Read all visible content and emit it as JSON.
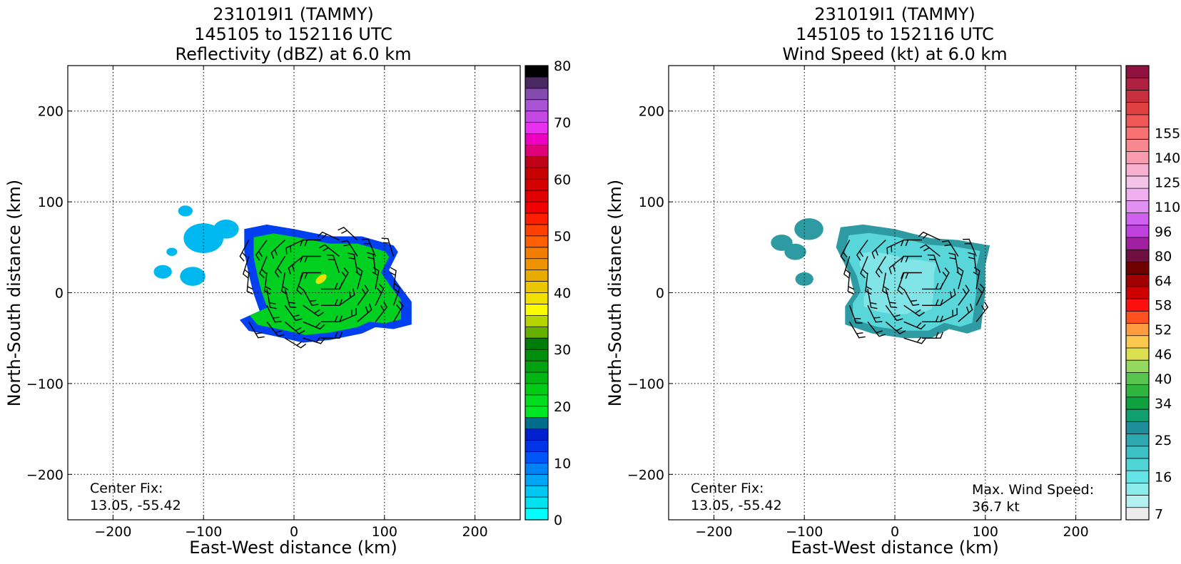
{
  "chart_data": [
    {
      "type": "heatmap",
      "title": [
        "231019I1 (TAMMY)",
        "145105 to 152116 UTC",
        "Reflectivity (dBZ) at 6.0 km"
      ],
      "xlabel": "East-West distance (km)",
      "ylabel": "North-South distance (km)",
      "xlim": [
        -250,
        250
      ],
      "ylim": [
        -250,
        250
      ],
      "xticks": [
        -200,
        -100,
        0,
        100,
        200
      ],
      "yticks": [
        -200,
        -100,
        0,
        100,
        200
      ],
      "xtick_labels": [
        "−200",
        "−100",
        "0",
        "100",
        "200"
      ],
      "ytick_labels": [
        "−200",
        "−100",
        "0",
        "100",
        "200"
      ],
      "grid": true,
      "annotation": {
        "label": "Center Fix:",
        "value": "13.05, -55.42"
      },
      "colorbar": {
        "range": [
          0,
          80
        ],
        "tick_values": [
          0,
          10,
          20,
          30,
          40,
          50,
          60,
          70,
          80
        ],
        "tick_labels": [
          "0",
          "10",
          "20",
          "30",
          "40",
          "50",
          "60",
          "70",
          "80"
        ],
        "colors": [
          "#00ffff",
          "#00e2f0",
          "#00c6f2",
          "#00a4f5",
          "#0082f7",
          "#0055f8",
          "#0034e6",
          "#0020d0",
          "#006e8a",
          "#00e624",
          "#00dc1e",
          "#00cc16",
          "#00b612",
          "#00a20f",
          "#008f0c",
          "#007c08",
          "#68b000",
          "#b6d400",
          "#fcfc00",
          "#f2e000",
          "#ecc600",
          "#e8ac00",
          "#ef9400",
          "#f47c00",
          "#fc6000",
          "#ff4000",
          "#ff1f00",
          "#f00000",
          "#e00000",
          "#d40000",
          "#c90000",
          "#c00018",
          "#e0007a",
          "#ee00c0",
          "#e830ee",
          "#c648e4",
          "#a854d4",
          "#844aae",
          "#4a2a60",
          "#000000"
        ]
      },
      "data_region": {
        "main_body": [
          [
            -55,
            70
          ],
          [
            -30,
            75
          ],
          [
            0,
            70
          ],
          [
            40,
            62
          ],
          [
            75,
            62
          ],
          [
            110,
            52
          ],
          [
            115,
            45
          ],
          [
            105,
            25
          ],
          [
            115,
            10
          ],
          [
            130,
            -10
          ],
          [
            130,
            -35
          ],
          [
            110,
            -40
          ],
          [
            90,
            -38
          ],
          [
            75,
            -45
          ],
          [
            40,
            -52
          ],
          [
            10,
            -55
          ],
          [
            -20,
            -48
          ],
          [
            -50,
            -42
          ],
          [
            -60,
            -30
          ],
          [
            -38,
            -20
          ],
          [
            -45,
            0
          ],
          [
            -50,
            20
          ],
          [
            -55,
            45
          ]
        ],
        "small_patches": [
          [
            -145,
            23,
            10
          ],
          [
            -112,
            18,
            14
          ],
          [
            -100,
            60,
            22
          ],
          [
            -75,
            70,
            14
          ],
          [
            -135,
            45,
            6
          ],
          [
            -120,
            90,
            8
          ]
        ],
        "colors": {
          "edge": "#0040f0",
          "body": "#00d020",
          "core": "#e8e000",
          "outer": "#00b8f0"
        },
        "core_location": [
          30,
          15
        ]
      },
      "wind_barbs": "present"
    },
    {
      "type": "heatmap",
      "title": [
        "231019I1 (TAMMY)",
        "145105 to 152116 UTC",
        "Wind Speed (kt) at 6.0 km"
      ],
      "xlabel": "East-West distance (km)",
      "ylabel": "North-South distance (km)",
      "xlim": [
        -250,
        250
      ],
      "ylim": [
        -250,
        250
      ],
      "xticks": [
        -200,
        -100,
        0,
        100,
        200
      ],
      "yticks": [
        -200,
        -100,
        0,
        100,
        200
      ],
      "xtick_labels": [
        "−200",
        "−100",
        "0",
        "100",
        "200"
      ],
      "ytick_labels": [
        "−200",
        "−100",
        "0",
        "100",
        "200"
      ],
      "grid": true,
      "annotation": {
        "label": "Center Fix:",
        "value": "13.05, -55.42"
      },
      "max_wind": {
        "label": "Max. Wind Speed:",
        "value": "36.7 kt"
      },
      "colorbar": {
        "tick_labels": [
          "7",
          "16",
          "25",
          "34",
          "40",
          "46",
          "52",
          "58",
          "64",
          "80",
          "96",
          "110",
          "125",
          "140",
          "155"
        ],
        "tick_indices": [
          0,
          3,
          6,
          9,
          11,
          13,
          15,
          17,
          19,
          21,
          23,
          25,
          27,
          29,
          31
        ],
        "colors": [
          "#ececec",
          "#b4f0f0",
          "#8cecec",
          "#64e4e6",
          "#50d4d6",
          "#3cc0c4",
          "#2ea8b0",
          "#208e9a",
          "#10a070",
          "#10a040",
          "#30b440",
          "#58c450",
          "#94d860",
          "#dce050",
          "#fcc850",
          "#ff9c40",
          "#ff5020",
          "#ff1010",
          "#d00000",
          "#a00000",
          "#700000",
          "#701040",
          "#a020a0",
          "#c040e0",
          "#d060f0",
          "#e090f0",
          "#f0b0f0",
          "#f4c4e8",
          "#f8b0d0",
          "#f89cb0",
          "#f88890",
          "#f87070",
          "#f05858",
          "#e04040",
          "#c83040",
          "#b02040",
          "#901040"
        ]
      },
      "data_region": {
        "main_body": [
          [
            -60,
            72
          ],
          [
            -35,
            75
          ],
          [
            0,
            70
          ],
          [
            40,
            60
          ],
          [
            70,
            58
          ],
          [
            105,
            52
          ],
          [
            100,
            30
          ],
          [
            100,
            0
          ],
          [
            95,
            -40
          ],
          [
            80,
            -45
          ],
          [
            60,
            -40
          ],
          [
            40,
            -50
          ],
          [
            10,
            -50
          ],
          [
            -25,
            -45
          ],
          [
            -55,
            -35
          ],
          [
            -55,
            -15
          ],
          [
            -45,
            0
          ],
          [
            -50,
            20
          ],
          [
            -65,
            50
          ]
        ],
        "small_patches": [
          [
            -110,
            45,
            12
          ],
          [
            -95,
            70,
            16
          ],
          [
            -125,
            55,
            12
          ],
          [
            -100,
            15,
            10
          ]
        ],
        "colors": {
          "edge": "#2e9aa2",
          "body": "#58d6da",
          "light": "#8ce8ea"
        }
      },
      "wind_barbs": "present"
    }
  ]
}
